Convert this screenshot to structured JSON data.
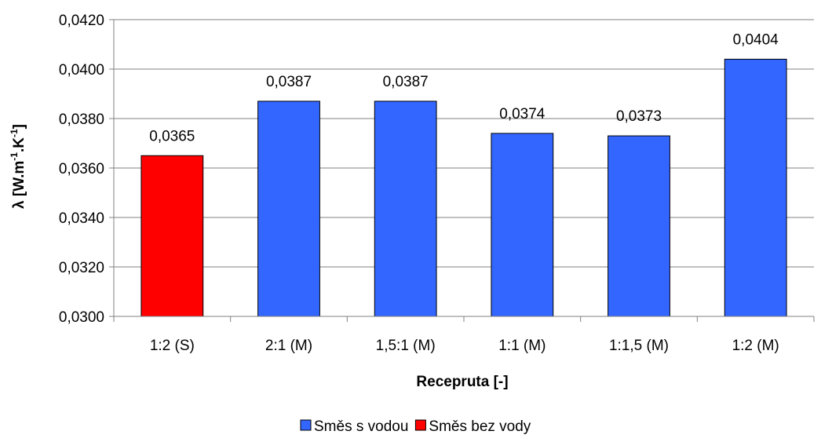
{
  "chart_data": {
    "type": "bar",
    "categories": [
      "1:2 (S)",
      "2:1 (M)",
      "1,5:1 (M)",
      "1:1 (M)",
      "1:1,5 (M)",
      "1:2 (M)"
    ],
    "values": [
      0.0365,
      0.0387,
      0.0387,
      0.0374,
      0.0373,
      0.0404
    ],
    "data_labels": [
      "0,0365",
      "0,0387",
      "0,0387",
      "0,0374",
      "0,0373",
      "0,0404"
    ],
    "series_of_bar": [
      "Směs bez vody",
      "Směs s vodou",
      "Směs s vodou",
      "Směs s vodou",
      "Směs s vodou",
      "Směs s vodou"
    ],
    "series": [
      {
        "name": "Směs s vodou",
        "color": "#3366ff"
      },
      {
        "name": "Směs bez vody",
        "color": "#ff0000"
      }
    ],
    "xlabel": "Recepruta [-]",
    "ylabel": "λ [W.m-1.K-1]",
    "ylim": [
      0.03,
      0.042
    ],
    "yticks": [
      0.03,
      0.032,
      0.034,
      0.036,
      0.038,
      0.04,
      0.042
    ],
    "ytick_labels": [
      "0,0300",
      "0,0320",
      "0,0340",
      "0,0360",
      "0,0380",
      "0,0400",
      "0,0420"
    ],
    "grid": true,
    "legend_position": "bottom"
  }
}
